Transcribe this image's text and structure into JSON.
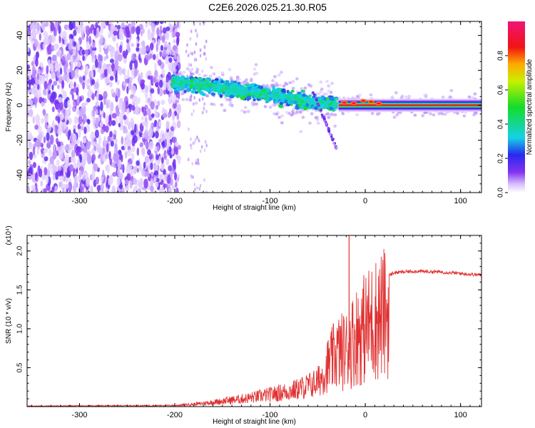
{
  "title": "C2E6.2026.025.21.30.R05",
  "chart_data": [
    {
      "type": "heatmap",
      "name": "spectrogram",
      "xlabel": "Height of straight line (km)",
      "ylabel": "Frequency (Hz)",
      "xlim": [
        -355,
        122
      ],
      "ylim": [
        -50,
        48
      ],
      "xticks": [
        -300,
        -200,
        -100,
        0,
        100
      ],
      "yticks": [
        -40,
        -20,
        0,
        20,
        40
      ],
      "colorbar": {
        "label": "Normalized spectral amplitude",
        "range": [
          0,
          1
        ],
        "ticks": [
          0.0,
          0.2,
          0.4,
          0.6,
          0.8
        ]
      },
      "features": {
        "noise_region_x": [
          -355,
          -195
        ],
        "signal_track": [
          {
            "x": -200,
            "f": 13
          },
          {
            "x": -150,
            "f": 10
          },
          {
            "x": -100,
            "f": 6
          },
          {
            "x": -50,
            "f": 1
          },
          {
            "x": -25,
            "f": 1
          },
          {
            "x": 0,
            "f": 0
          },
          {
            "x": 122,
            "f": 0
          }
        ],
        "branch_track": [
          {
            "x": -55,
            "f": 8
          },
          {
            "x": -30,
            "f": -25
          }
        ]
      }
    },
    {
      "type": "line",
      "name": "snr",
      "xlabel": "Height of straight line (km)",
      "ylabel": "SNR (10 * v/v)",
      "y_multiplier": "(x10⁴)",
      "xlim": [
        -355,
        122
      ],
      "ylim": [
        0,
        2.2
      ],
      "xticks": [
        -300,
        -200,
        -100,
        0,
        100
      ],
      "yticks": [
        0.5,
        1.0,
        1.5,
        2.0
      ],
      "ytick_labels": [
        "0.5",
        "1.0",
        "1.5",
        "2.0"
      ],
      "color": "#e03030",
      "envelope": [
        {
          "x": -355,
          "y": 0.01
        },
        {
          "x": -200,
          "y": 0.02
        },
        {
          "x": -175,
          "y": 0.05
        },
        {
          "x": -150,
          "y": 0.1
        },
        {
          "x": -125,
          "y": 0.15
        },
        {
          "x": -100,
          "y": 0.22
        },
        {
          "x": -75,
          "y": 0.3
        },
        {
          "x": -60,
          "y": 0.38
        },
        {
          "x": -50,
          "y": 0.45
        },
        {
          "x": -40,
          "y": 0.7
        },
        {
          "x": -30,
          "y": 0.95
        },
        {
          "x": -20,
          "y": 1.0
        },
        {
          "x": -10,
          "y": 1.25
        },
        {
          "x": 0,
          "y": 1.4
        },
        {
          "x": 10,
          "y": 1.55
        },
        {
          "x": 20,
          "y": 1.65
        },
        {
          "x": 30,
          "y": 1.72
        },
        {
          "x": 50,
          "y": 1.74
        },
        {
          "x": 80,
          "y": 1.73
        },
        {
          "x": 100,
          "y": 1.71
        },
        {
          "x": 122,
          "y": 1.69
        }
      ],
      "spike": {
        "x": -17,
        "y": 2.2
      }
    }
  ]
}
